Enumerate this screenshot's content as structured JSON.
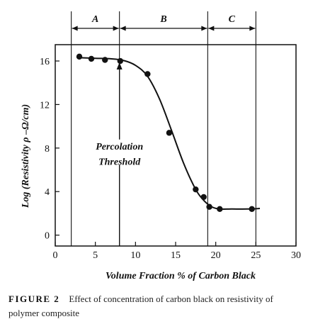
{
  "chart_data": {
    "type": "scatter",
    "xlabel": "Volume Fraction % of Carbon Black",
    "ylabel": "Log (Resistivity ρ –Ω/cm)",
    "xlim": [
      0,
      30
    ],
    "ylim": [
      -1,
      17.5
    ],
    "xticks": [
      "0",
      "5",
      "10",
      "15",
      "20",
      "25",
      "30"
    ],
    "yticks": [
      "0",
      "4",
      "8",
      "12",
      "16"
    ],
    "points": [
      {
        "x": 3.0,
        "y": 16.4
      },
      {
        "x": 4.5,
        "y": 16.2
      },
      {
        "x": 6.2,
        "y": 16.1
      },
      {
        "x": 8.1,
        "y": 16.0
      },
      {
        "x": 11.5,
        "y": 14.8
      },
      {
        "x": 14.2,
        "y": 9.4
      },
      {
        "x": 17.5,
        "y": 4.2
      },
      {
        "x": 18.5,
        "y": 3.5
      },
      {
        "x": 19.2,
        "y": 2.6
      },
      {
        "x": 20.5,
        "y": 2.4
      },
      {
        "x": 24.5,
        "y": 2.4
      }
    ],
    "curve": [
      {
        "x": 3.0,
        "y": 16.3
      },
      {
        "x": 5.0,
        "y": 16.25
      },
      {
        "x": 7.0,
        "y": 16.2
      },
      {
        "x": 8.5,
        "y": 16.05
      },
      {
        "x": 10.0,
        "y": 15.6
      },
      {
        "x": 11.5,
        "y": 14.6
      },
      {
        "x": 13.0,
        "y": 12.5
      },
      {
        "x": 14.5,
        "y": 9.6
      },
      {
        "x": 16.0,
        "y": 6.6
      },
      {
        "x": 17.5,
        "y": 4.2
      },
      {
        "x": 18.5,
        "y": 3.2
      },
      {
        "x": 19.5,
        "y": 2.6
      },
      {
        "x": 20.5,
        "y": 2.4
      },
      {
        "x": 22.0,
        "y": 2.4
      },
      {
        "x": 24.0,
        "y": 2.4
      },
      {
        "x": 25.5,
        "y": 2.45
      }
    ],
    "regions": [
      {
        "label": "A",
        "x_start": 2,
        "x_end": 8
      },
      {
        "label": "B",
        "x_start": 8,
        "x_end": 19
      },
      {
        "label": "C",
        "x_start": 19,
        "x_end": 25
      }
    ],
    "annotation": {
      "line1": "Percolation",
      "line2": "Threshold",
      "arrow_x": 8,
      "arrow_y_from": 4,
      "arrow_y_to": 16
    }
  },
  "caption": {
    "label": "FIGURE 2",
    "text": "Effect of concentration of carbon black on resistivity of polymer composite"
  }
}
